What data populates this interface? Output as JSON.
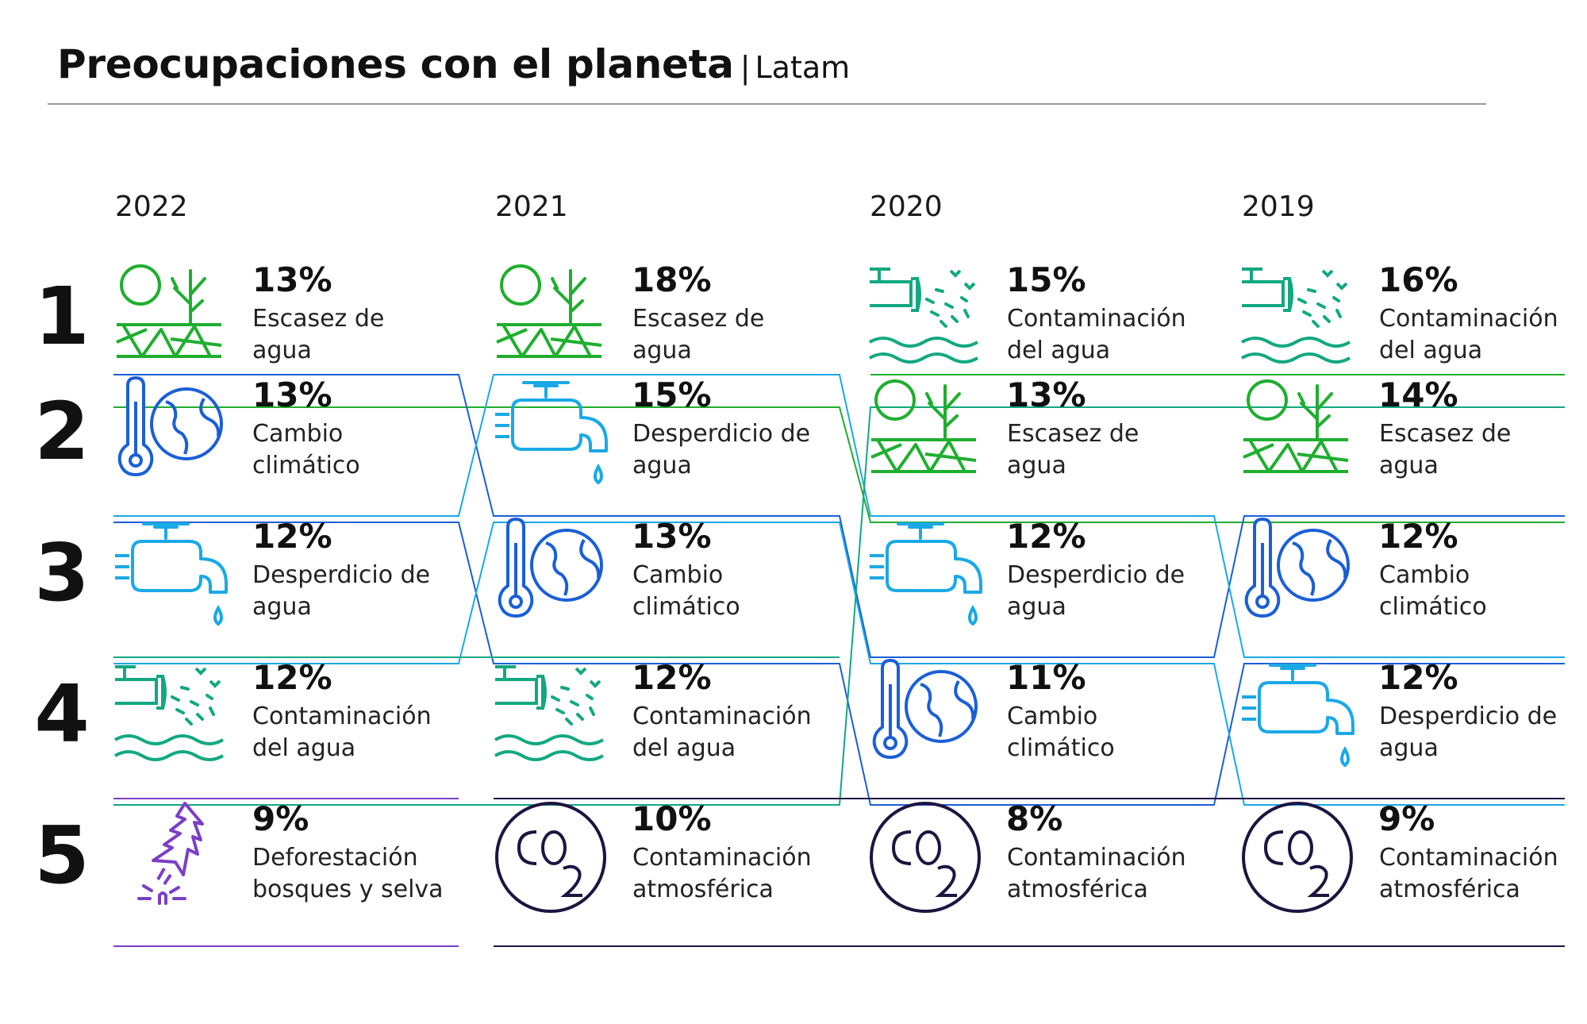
{
  "title": "Preocupaciones con el planeta",
  "title_separator": "|",
  "subtitle": "Latam",
  "colors": {
    "escasez": "#1fae2f",
    "cambio": "#1a5fd6",
    "desperdicio": "#1aa9e6",
    "contaminacion_agua": "#12a882",
    "deforestacion": "#7b3fc6",
    "atmosferica": "#1e1440"
  },
  "chart_data": {
    "type": "table",
    "ranks": [
      "1",
      "2",
      "3",
      "4",
      "5"
    ],
    "columns": [
      {
        "year": "2022",
        "items": [
          {
            "rank": "1",
            "value": 13,
            "pct": "13%",
            "label": [
              "Escasez de",
              "agua"
            ],
            "key": "escasez",
            "icon": "dry-land-icon"
          },
          {
            "rank": "2",
            "value": 13,
            "pct": "13%",
            "label": [
              "Cambio",
              "climático"
            ],
            "key": "cambio",
            "icon": "thermometer-globe-icon"
          },
          {
            "rank": "3",
            "value": 12,
            "pct": "12%",
            "label": [
              "Desperdicio de",
              "agua"
            ],
            "key": "desperdicio",
            "icon": "faucet-drop-icon"
          },
          {
            "rank": "4",
            "value": 12,
            "pct": "12%",
            "label": [
              "Contaminación",
              "del agua"
            ],
            "key": "contaminacion_agua",
            "icon": "pipe-waves-icon"
          },
          {
            "rank": "5",
            "value": 9,
            "pct": "9%",
            "label": [
              "Deforestación",
              "bosques y selva"
            ],
            "key": "deforestacion",
            "icon": "felled-tree-icon"
          }
        ]
      },
      {
        "year": "2021",
        "items": [
          {
            "rank": "1",
            "value": 18,
            "pct": "18%",
            "label": [
              "Escasez de",
              "agua"
            ],
            "key": "escasez",
            "icon": "dry-land-icon"
          },
          {
            "rank": "2",
            "value": 15,
            "pct": "15%",
            "label": [
              "Desperdicio de",
              "agua"
            ],
            "key": "desperdicio",
            "icon": "faucet-drop-icon"
          },
          {
            "rank": "3",
            "value": 13,
            "pct": "13%",
            "label": [
              "Cambio",
              "climático"
            ],
            "key": "cambio",
            "icon": "thermometer-globe-icon"
          },
          {
            "rank": "4",
            "value": 12,
            "pct": "12%",
            "label": [
              "Contaminación",
              "del agua"
            ],
            "key": "contaminacion_agua",
            "icon": "pipe-waves-icon"
          },
          {
            "rank": "5",
            "value": 10,
            "pct": "10%",
            "label": [
              "Contaminación",
              "atmosférica"
            ],
            "key": "atmosferica",
            "icon": "co2-icon"
          }
        ]
      },
      {
        "year": "2020",
        "items": [
          {
            "rank": "1",
            "value": 15,
            "pct": "15%",
            "label": [
              "Contaminación",
              "del agua"
            ],
            "key": "contaminacion_agua",
            "icon": "pipe-waves-icon"
          },
          {
            "rank": "2",
            "value": 13,
            "pct": "13%",
            "label": [
              "Escasez de",
              "agua"
            ],
            "key": "escasez",
            "icon": "dry-land-icon"
          },
          {
            "rank": "3",
            "value": 12,
            "pct": "12%",
            "label": [
              "Desperdicio de",
              "agua"
            ],
            "key": "desperdicio",
            "icon": "faucet-drop-icon"
          },
          {
            "rank": "4",
            "value": 11,
            "pct": "11%",
            "label": [
              "Cambio",
              "climático"
            ],
            "key": "cambio",
            "icon": "thermometer-globe-icon"
          },
          {
            "rank": "5",
            "value": 8,
            "pct": "8%",
            "label": [
              "Contaminación",
              "atmosférica"
            ],
            "key": "atmosferica",
            "icon": "co2-icon"
          }
        ]
      },
      {
        "year": "2019",
        "items": [
          {
            "rank": "1",
            "value": 16,
            "pct": "16%",
            "label": [
              "Contaminación",
              "del agua"
            ],
            "key": "contaminacion_agua",
            "icon": "pipe-waves-icon"
          },
          {
            "rank": "2",
            "value": 14,
            "pct": "14%",
            "label": [
              "Escasez de",
              "agua"
            ],
            "key": "escasez",
            "icon": "dry-land-icon"
          },
          {
            "rank": "3",
            "value": 12,
            "pct": "12%",
            "label": [
              "Cambio",
              "climático"
            ],
            "key": "cambio",
            "icon": "thermometer-globe-icon"
          },
          {
            "rank": "4",
            "value": 12,
            "pct": "12%",
            "label": [
              "Desperdicio de",
              "agua"
            ],
            "key": "desperdicio",
            "icon": "faucet-drop-icon"
          },
          {
            "rank": "5",
            "value": 9,
            "pct": "9%",
            "label": [
              "Contaminación",
              "atmosférica"
            ],
            "key": "atmosferica",
            "icon": "co2-icon"
          }
        ]
      }
    ]
  }
}
